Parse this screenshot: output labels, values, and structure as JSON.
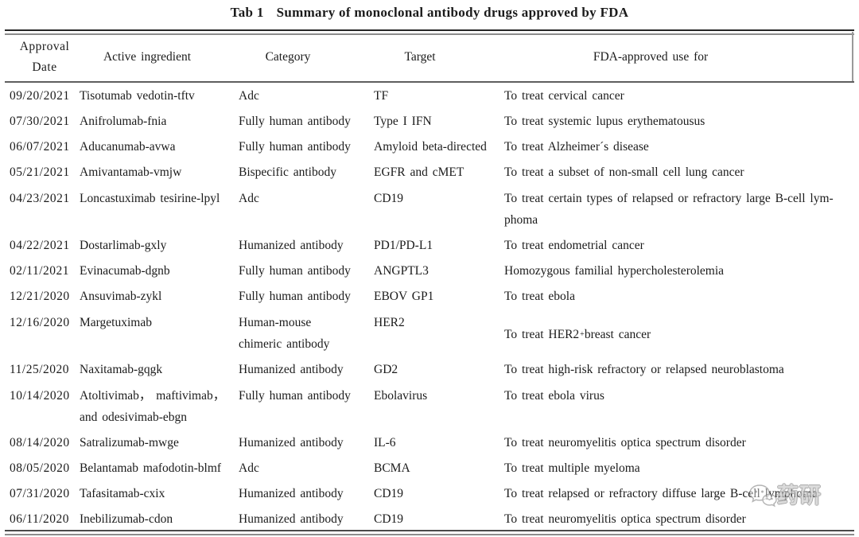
{
  "caption": {
    "label": "Tab 1",
    "title": "Summary of monoclonal antibody drugs approved by FDA"
  },
  "table": {
    "headers": [
      [
        "Approval",
        "Date"
      ],
      [
        "Active ingredient"
      ],
      [
        "Category"
      ],
      [
        "Target"
      ],
      [
        "FDA-approved use for"
      ]
    ],
    "rows": [
      {
        "date": "09/20/2021",
        "ingredient": "Tisotumab vedotin-tftv",
        "category": "Adc",
        "target": "TF",
        "use": "To treat cervical cancer"
      },
      {
        "date": "07/30/2021",
        "ingredient": "Anifrolumab-fnia",
        "category": "Fully human antibody",
        "target": "Type I IFN",
        "use": "To treat systemic lupus erythematousus"
      },
      {
        "date": "06/07/2021",
        "ingredient": "Aducanumab-avwa",
        "category": "Fully human antibody",
        "target": "Amyloid beta-directed",
        "use": "To treat Alzheimer´s disease"
      },
      {
        "date": "05/21/2021",
        "ingredient": "Amivantamab-vmjw",
        "category": "Bispecific antibody",
        "target": "EGFR and cMET",
        "use": "To treat a subset of non-small cell lung cancer"
      },
      {
        "date": "04/23/2021",
        "ingredient": "Loncastuximab tesirine-lpyl",
        "category": "Adc",
        "target": "CD19",
        "use": [
          "To treat certain types of relapsed or refractory large B-cell lym-",
          "phoma"
        ]
      },
      {
        "date": "04/22/2021",
        "ingredient": "Dostarlimab-gxly",
        "category": "Humanized antibody",
        "target": "PD1/PD-L1",
        "use": "To treat endometrial cancer"
      },
      {
        "date": "02/11/2021",
        "ingredient": "Evinacumab-dgnb",
        "category": "Fully human antibody",
        "target": "ANGPTL3",
        "use": "Homozygous familial hypercholesterolemia"
      },
      {
        "date": "12/21/2020",
        "ingredient": "Ansuvimab-zykl",
        "category": "Fully human antibody",
        "target": "EBOV GP1",
        "use": "To treat ebola"
      },
      {
        "date": "12/16/2020",
        "ingredient": "Margetuximab",
        "category": [
          "Human-mouse",
          "chimeric antibody"
        ],
        "target": "HER2",
        "use": {
          "pre": "To treat HER2",
          "sup": "+",
          "post": " breast cancer"
        }
      },
      {
        "date": "11/25/2020",
        "ingredient": "Naxitamab-gqgk",
        "category": "Humanized antibody",
        "target": "GD2",
        "use": "To treat high-risk refractory or relapsed neuroblastoma"
      },
      {
        "date": "10/14/2020",
        "ingredient": [
          "Atoltivimab， maftivimab，",
          "and odesivimab-ebgn"
        ],
        "category": "Fully human antibody",
        "target": "Ebolavirus",
        "use": "To treat ebola virus"
      },
      {
        "date": "08/14/2020",
        "ingredient": "Satralizumab-mwge",
        "category": "Humanized antibody",
        "target": "IL-6",
        "use": "To treat neuromyelitis optica spectrum disorder"
      },
      {
        "date": "08/05/2020",
        "ingredient": "Belantamab mafodotin-blmf",
        "category": "Adc",
        "target": "BCMA",
        "use": "To treat multiple myeloma"
      },
      {
        "date": "07/31/2020",
        "ingredient": "Tafasitamab-cxix",
        "category": "Humanized antibody",
        "target": "CD19",
        "use": "To treat relapsed or refractory diffuse large B-cell lymphoma"
      },
      {
        "date": "06/11/2020",
        "ingredient": "Inebilizumab-cdon",
        "category": "Humanized antibody",
        "target": "CD19",
        "use": "To treat neuromyelitis optica spectrum disorder"
      }
    ]
  },
  "watermark": {
    "icon": "wechat-bubbles-icon",
    "text": "药研",
    "color": "#9a9a9a"
  },
  "colors": {
    "text": "#1b1b1b",
    "rule_dark": "#262626",
    "rule_gray": "#8c8c8c",
    "background": "#ffffff"
  }
}
